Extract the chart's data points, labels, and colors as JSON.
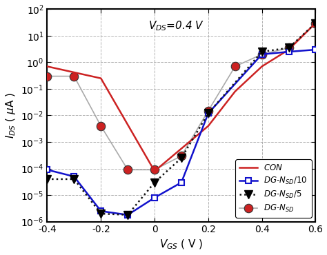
{
  "title_annotation": "$V_{DS}$=0.4 V",
  "xlabel": "$V_{GS}$ ( V )",
  "ylabel": "$I_{DS}$ ($\\mu$A )",
  "xlim": [
    -0.4,
    0.6
  ],
  "ylim_log": [
    -6,
    2
  ],
  "con_x": [
    -0.4,
    -0.2,
    0.0,
    0.2,
    0.3,
    0.4,
    0.5,
    0.6
  ],
  "con_y": [
    0.7,
    0.25,
    8e-05,
    0.004,
    0.08,
    0.7,
    3.0,
    30.0
  ],
  "dg_nsd10_x": [
    -0.4,
    -0.3,
    -0.2,
    -0.1,
    0.0,
    0.1,
    0.2,
    0.4,
    0.5,
    0.6
  ],
  "dg_nsd10_y": [
    9e-05,
    5e-05,
    2.5e-06,
    1.8e-06,
    8e-06,
    3e-05,
    0.012,
    2.0,
    2.5,
    3.0
  ],
  "dg_nsd5_x": [
    -0.4,
    -0.3,
    -0.2,
    -0.1,
    0.0,
    0.1,
    0.2,
    0.4,
    0.5,
    0.6
  ],
  "dg_nsd5_y": [
    4e-05,
    4e-05,
    2e-06,
    1.8e-06,
    3e-05,
    0.00025,
    0.012,
    2.5,
    3.5,
    30.0
  ],
  "dg_nsd_x": [
    -0.4,
    -0.3,
    -0.2,
    -0.1,
    0.0,
    0.1,
    0.2,
    0.3,
    0.4,
    0.5,
    0.6
  ],
  "dg_nsd_y": [
    0.3,
    0.3,
    0.004,
    9e-05,
    9e-05,
    0.0003,
    0.015,
    0.7,
    2.0,
    3.5,
    30.0
  ],
  "con_color": "#cc2222",
  "dg_nsd10_color": "#1111cc",
  "dg_nsd5_color": "#111111",
  "dg_nsd_color": "#aaaaaa",
  "background_color": "#ffffff"
}
